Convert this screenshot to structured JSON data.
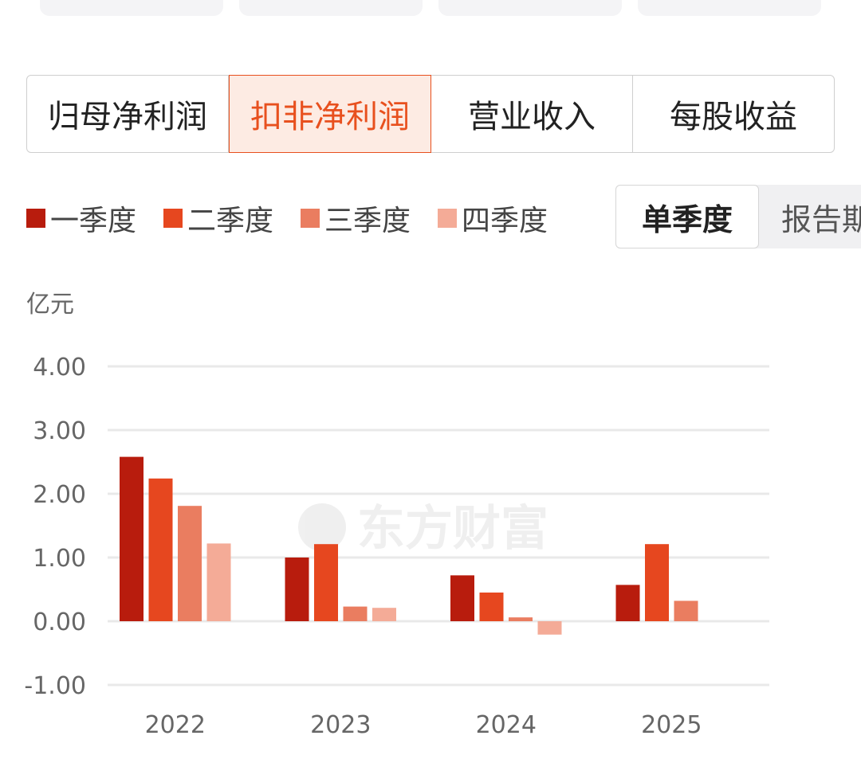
{
  "metric_tabs": [
    {
      "label": "归母净利润",
      "active": false
    },
    {
      "label": "扣非净利润",
      "active": true
    },
    {
      "label": "营业收入",
      "active": false
    },
    {
      "label": "每股收益",
      "active": false
    }
  ],
  "legend": [
    {
      "label": "一季度",
      "color": "#b81c0d"
    },
    {
      "label": "二季度",
      "color": "#e6471f"
    },
    {
      "label": "三季度",
      "color": "#ea7d60"
    },
    {
      "label": "四季度",
      "color": "#f4ab97"
    }
  ],
  "mode_toggle": {
    "active_label": "单季度",
    "inactive_label": "报告期"
  },
  "watermark": "东方财富",
  "chart_data": {
    "type": "bar",
    "unit_label": "亿元",
    "categories": [
      "2022",
      "2023",
      "2024",
      "2025"
    ],
    "series": [
      {
        "name": "一季度",
        "color": "#b81c0d",
        "values": [
          2.58,
          1.0,
          0.72,
          0.57
        ]
      },
      {
        "name": "二季度",
        "color": "#e6471f",
        "values": [
          2.24,
          1.21,
          0.45,
          1.21
        ]
      },
      {
        "name": "三季度",
        "color": "#ea7d60",
        "values": [
          1.81,
          0.23,
          0.06,
          0.32
        ]
      },
      {
        "name": "四季度",
        "color": "#f4ab97",
        "values": [
          1.22,
          0.21,
          -0.21,
          null
        ]
      }
    ],
    "ylim": [
      -1,
      4
    ],
    "yticks": [
      "4.00",
      "3.00",
      "2.00",
      "1.00",
      "0.00",
      "-1.00"
    ],
    "grid": true,
    "legend_position": "top-left"
  }
}
